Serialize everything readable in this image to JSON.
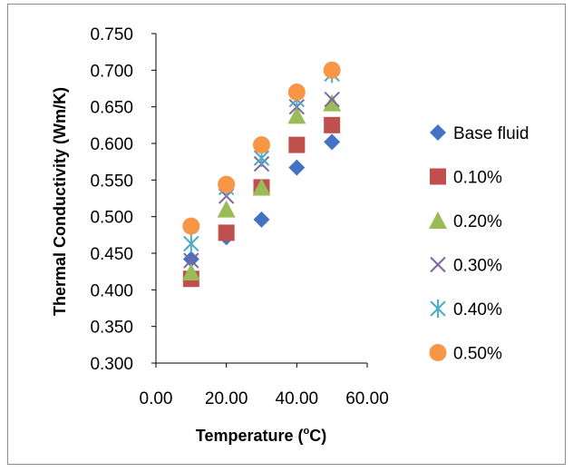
{
  "chart_data": {
    "type": "scatter",
    "title": "",
    "xlabel": "Temperature (°C)",
    "xlabel_main": "Temperature (",
    "xlabel_sup": "o",
    "xlabel_end": "C)",
    "ylabel": "Thermal Conductivity (Wm/K)",
    "xlim": [
      0,
      60
    ],
    "ylim": [
      0.3,
      0.75
    ],
    "x_ticks": [
      "0.00",
      "20.00",
      "40.00",
      "60.00"
    ],
    "y_ticks": [
      "0.300",
      "0.350",
      "0.400",
      "0.450",
      "0.500",
      "0.550",
      "0.600",
      "0.650",
      "0.700",
      "0.750"
    ],
    "grid": false,
    "legend_position": "right",
    "series": [
      {
        "name": "Base fluid",
        "marker": "diamond",
        "color": "#4472c4",
        "x": [
          10,
          20,
          30,
          40,
          50
        ],
        "y": [
          0.442,
          0.472,
          0.496,
          0.567,
          0.602
        ]
      },
      {
        "name": "0.10%",
        "marker": "square",
        "color": "#c0504d",
        "x": [
          10,
          20,
          30,
          40,
          50
        ],
        "y": [
          0.415,
          0.478,
          0.54,
          0.598,
          0.625
        ]
      },
      {
        "name": "0.20%",
        "marker": "triangle",
        "color": "#9bbb59",
        "x": [
          10,
          20,
          30,
          40,
          50
        ],
        "y": [
          0.424,
          0.51,
          0.54,
          0.638,
          0.655
        ]
      },
      {
        "name": "0.30%",
        "marker": "x",
        "color": "#8064a2",
        "x": [
          10,
          20,
          30,
          40,
          50
        ],
        "y": [
          0.44,
          0.528,
          0.572,
          0.65,
          0.66
        ]
      },
      {
        "name": "0.40%",
        "marker": "star",
        "color": "#4bacc6",
        "x": [
          10,
          20,
          30,
          40,
          50
        ],
        "y": [
          0.463,
          0.54,
          0.58,
          0.66,
          0.695
        ]
      },
      {
        "name": "0.50%",
        "marker": "circle",
        "color": "#f79646",
        "x": [
          10,
          20,
          30,
          40,
          50
        ],
        "y": [
          0.487,
          0.544,
          0.598,
          0.67,
          0.7
        ]
      }
    ]
  }
}
